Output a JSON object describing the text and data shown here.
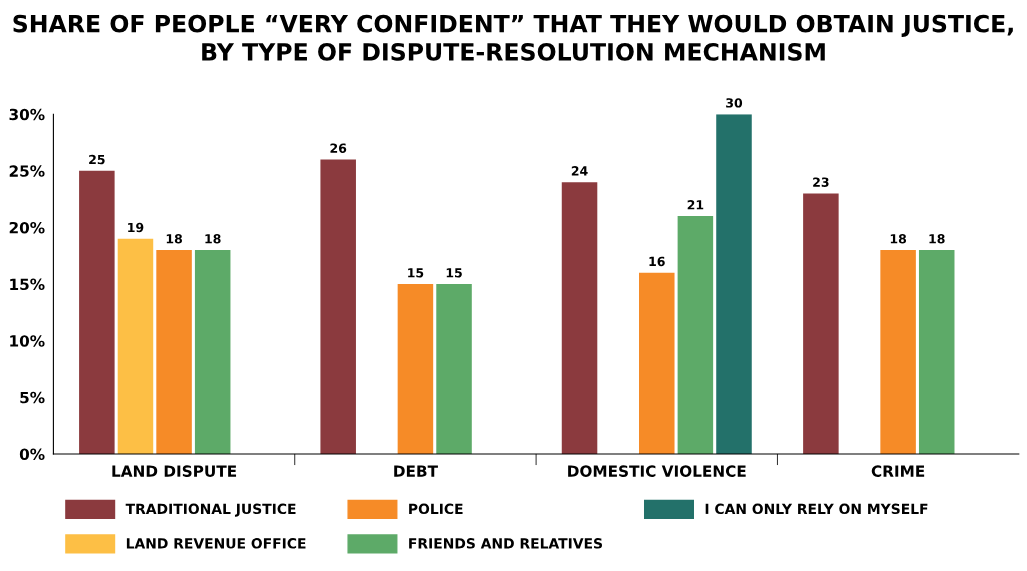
{
  "chart_data": {
    "type": "bar",
    "title": "SHARE OF PEOPLE “VERY CONFIDENT” THAT THEY WOULD OBTAIN JUSTICE,\nBY TYPE OF DISPUTE-RESOLUTION MECHANISM",
    "categories": [
      "LAND DISPUTE",
      "DEBT",
      "DOMESTIC VIOLENCE",
      "CRIME"
    ],
    "series": [
      {
        "name": "TRADITIONAL JUSTICE",
        "color": "#8b3a3e",
        "values": [
          25,
          26,
          24,
          23
        ],
        "value_labels": [
          "25",
          "26",
          "24",
          "23"
        ]
      },
      {
        "name": "LAND REVENUE OFFICE",
        "color": "#fdbf45",
        "values": [
          19,
          0,
          0,
          0
        ],
        "value_labels": [
          "19",
          null,
          null,
          null
        ]
      },
      {
        "name": "POLICE",
        "color": "#f68b27",
        "values": [
          18,
          15,
          16,
          18
        ],
        "value_labels": [
          "18",
          "15",
          "16",
          "18"
        ]
      },
      {
        "name": "FRIENDS AND RELATIVES",
        "color": "#5daa68",
        "values": [
          18,
          15,
          21,
          18
        ],
        "value_labels": [
          "18",
          "15",
          "21",
          "18"
        ]
      },
      {
        "name": "I CAN ONLY RELY ON MYSELF",
        "color": "#23716a",
        "values": [
          0,
          0,
          30,
          0
        ],
        "value_labels": [
          null,
          null,
          "30",
          null
        ]
      }
    ],
    "ylim": [
      0,
      30
    ],
    "yticks": [
      {
        "value": 0,
        "label": "0%"
      },
      {
        "value": 5,
        "label": "5%"
      },
      {
        "value": 10,
        "label": "10%"
      },
      {
        "value": 15,
        "label": "15%"
      },
      {
        "value": 20,
        "label": "20%"
      },
      {
        "value": 25,
        "label": "25%"
      },
      {
        "value": 30,
        "label": "30%"
      }
    ],
    "grid": false,
    "legend": "bottom"
  }
}
